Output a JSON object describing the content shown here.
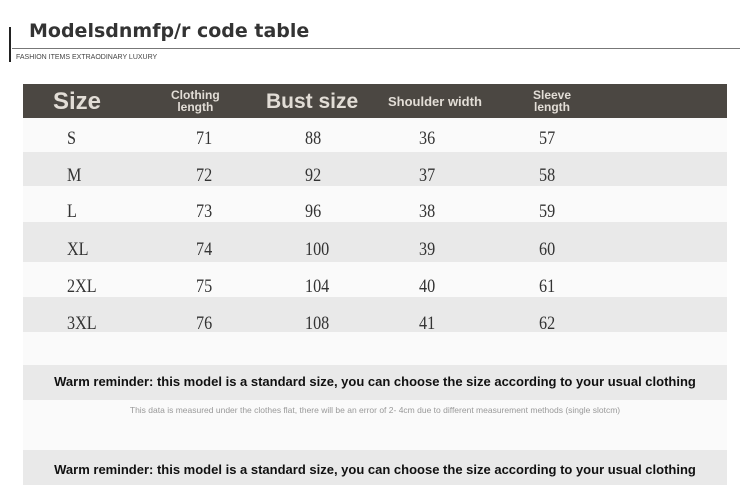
{
  "title": "Modelsdnmfp/r code table",
  "subtitle": "FASHION ITEMS EXTRAODINARY LUXURY",
  "table": {
    "headers": [
      "Size",
      "Clothing length",
      "Bust size",
      "Shoulder width",
      "Sleeve length"
    ],
    "header_lines": {
      "clothing": [
        "Clothing",
        "length"
      ],
      "sleeve": [
        "Sleeve",
        "length"
      ]
    },
    "rows": [
      [
        "S",
        "71",
        "88",
        "36",
        "57"
      ],
      [
        "M",
        "72",
        "92",
        "37",
        "58"
      ],
      [
        "L",
        "73",
        "96",
        "38",
        "59"
      ],
      [
        "XL",
        "74",
        "100",
        "39",
        "60"
      ],
      [
        "2XL",
        "75",
        "104",
        "40",
        "61"
      ],
      [
        "3XL",
        "76",
        "108",
        "41",
        "62"
      ]
    ]
  },
  "reminder": "Warm reminder: this model is a standard size, you can choose the size according to your usual clothing",
  "note": "This data is measured under the clothes flat, there will be an error of 2- 4cm due to different measurement methods (single slotcm)",
  "colors": {
    "header_bg": "#4b4742",
    "header_text": "#e2ddd6",
    "band_grey": "#e9e9e9"
  }
}
